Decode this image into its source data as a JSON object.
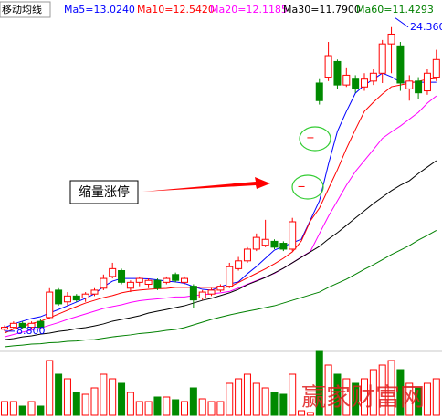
{
  "chart_data": {
    "type": "candlestick",
    "title": "移动均线",
    "open": [
      8.9,
      9.0,
      9.2,
      9.0,
      9.3,
      9.5,
      10.9,
      10.3,
      10.6,
      10.5,
      10.7,
      11.0,
      11.6,
      11.9,
      11.0,
      11.3,
      11.2,
      11.4,
      11.3,
      11.7,
      11.3,
      11.1,
      10.5,
      10.7,
      10.9,
      11.1,
      12.0,
      12.4,
      13.0,
      13.2,
      13.4,
      13.3,
      13.0,
      16.2,
      18.7,
      21.5,
      21.8,
      22.6,
      21.4,
      21.7,
      21.3,
      21.6,
      22.0,
      23.5,
      23.4,
      21.2,
      21.6,
      21.1,
      21.8
    ],
    "high": [
      9.1,
      9.3,
      9.3,
      9.3,
      9.4,
      11.0,
      11.0,
      10.8,
      10.7,
      10.8,
      11.0,
      11.7,
      12.3,
      12.0,
      11.4,
      11.6,
      11.5,
      11.5,
      11.6,
      11.8,
      11.6,
      11.2,
      10.9,
      11.0,
      11.2,
      12.3,
      12.6,
      13.1,
      13.8,
      14.5,
      13.5,
      13.4,
      14.6,
      16.2,
      18.7,
      21.7,
      23.6,
      22.7,
      22.3,
      21.9,
      22.0,
      22.2,
      23.7,
      24.36,
      23.6,
      21.9,
      21.8,
      22.2,
      23.2
    ],
    "low": [
      8.8,
      8.9,
      8.9,
      8.9,
      8.9,
      9.4,
      10.1,
      10.1,
      10.3,
      10.3,
      10.6,
      10.9,
      11.5,
      11.2,
      10.8,
      11.1,
      11.0,
      10.9,
      11.2,
      11.3,
      11.2,
      10.0,
      10.4,
      10.6,
      10.8,
      11.0,
      11.9,
      12.3,
      12.9,
      13.1,
      13.0,
      12.9,
      12.9,
      16.2,
      18.7,
      20.4,
      21.6,
      21.2,
      21.3,
      21.0,
      21.1,
      21.4,
      21.5,
      22.0,
      21.1,
      20.6,
      20.7,
      20.9,
      21.6
    ],
    "close": [
      9.0,
      9.2,
      9.0,
      9.2,
      9.0,
      10.8,
      10.2,
      10.6,
      10.4,
      10.7,
      10.9,
      11.5,
      12.0,
      11.3,
      11.3,
      11.5,
      11.4,
      11.0,
      11.5,
      11.4,
      11.5,
      10.4,
      10.8,
      10.9,
      11.1,
      12.1,
      12.4,
      13.0,
      13.6,
      13.5,
      13.1,
      13.0,
      14.4,
      16.2,
      18.7,
      20.6,
      22.9,
      21.4,
      21.9,
      21.2,
      21.7,
      22.0,
      23.5,
      24.0,
      21.5,
      21.6,
      21.0,
      22.0,
      22.7
    ],
    "up_color": "#ff0000",
    "down_color": "#008a00",
    "ylim": [
      8,
      25.75
    ],
    "series": [
      {
        "name": "Ma5=13.0240",
        "color": "#0000ff",
        "values": [
          8.98,
          9.17,
          9.31,
          9.45,
          9.54,
          9.73,
          9.91,
          10.1,
          10.29,
          10.48,
          10.71,
          11.08,
          11.36,
          11.5,
          11.5,
          11.5,
          11.48,
          11.43,
          11.36,
          11.32,
          11.25,
          11.08,
          10.94,
          10.9,
          11.08,
          11.22,
          11.32,
          11.74,
          12.11,
          12.53,
          12.95,
          13.14,
          13.32,
          13.51,
          14.49,
          15.47,
          17.34,
          19.02,
          20.05,
          20.98,
          21.4,
          21.69,
          22.01,
          21.82,
          21.54,
          21.54,
          21.54,
          21.54,
          21.54
        ]
      },
      {
        "name": "Ma10=12.5420",
        "color": "#ff0000",
        "values": [
          8.7,
          8.91,
          9.05,
          9.19,
          9.31,
          9.49,
          9.68,
          9.87,
          10.06,
          10.24,
          10.38,
          10.52,
          10.62,
          10.76,
          10.85,
          10.9,
          10.94,
          10.97,
          10.99,
          11.04,
          11.04,
          11.04,
          11.04,
          11.04,
          11.04,
          11.06,
          11.29,
          11.53,
          11.76,
          11.99,
          12.25,
          12.53,
          12.86,
          13.42,
          14.45,
          15.1,
          16.08,
          17.06,
          18.14,
          19.12,
          20.05,
          20.52,
          20.94,
          21.31,
          21.4,
          21.5,
          21.59,
          21.69,
          21.73
        ]
      },
      {
        "name": "Ma20=12.1185",
        "color": "#ff00ff",
        "values": [
          8.51,
          8.63,
          8.75,
          8.86,
          8.96,
          9.1,
          9.24,
          9.4,
          9.54,
          9.68,
          9.82,
          9.96,
          10.06,
          10.15,
          10.27,
          10.36,
          10.41,
          10.45,
          10.5,
          10.55,
          10.55,
          10.62,
          10.66,
          10.71,
          10.76,
          10.83,
          11.01,
          11.2,
          11.39,
          11.57,
          11.76,
          12.02,
          12.3,
          12.6,
          12.88,
          13.79,
          14.68,
          15.47,
          16.27,
          16.97,
          17.53,
          18.09,
          18.67,
          19.0,
          19.3,
          19.65,
          20.0,
          20.47,
          20.84
        ]
      },
      {
        "name": "Ma30=11.7900",
        "color": "#000000",
        "values": [
          8.37,
          8.42,
          8.51,
          8.56,
          8.65,
          8.7,
          8.79,
          8.84,
          8.93,
          8.98,
          9.07,
          9.17,
          9.31,
          9.4,
          9.49,
          9.59,
          9.73,
          9.82,
          9.91,
          10.01,
          10.1,
          10.24,
          10.38,
          10.48,
          10.62,
          10.76,
          10.94,
          11.18,
          11.36,
          11.55,
          11.78,
          12.02,
          12.3,
          12.58,
          12.86,
          13.14,
          13.51,
          13.84,
          14.21,
          14.59,
          14.96,
          15.33,
          15.66,
          15.99,
          16.27,
          16.5,
          16.87,
          17.2,
          17.53
        ]
      },
      {
        "name": "Ma60=11.4293",
        "color": "#008000",
        "values": [
          8.0,
          8.05,
          8.09,
          8.14,
          8.16,
          8.21,
          8.23,
          8.28,
          8.3,
          8.35,
          8.37,
          8.44,
          8.51,
          8.56,
          8.61,
          8.68,
          8.72,
          8.77,
          8.84,
          8.89,
          8.98,
          9.12,
          9.26,
          9.4,
          9.52,
          9.63,
          9.73,
          9.82,
          9.91,
          10.01,
          10.1,
          10.24,
          10.38,
          10.52,
          10.66,
          10.8,
          11.04,
          11.25,
          11.46,
          11.71,
          11.97,
          12.2,
          12.46,
          12.72,
          12.95,
          13.18,
          13.46,
          13.7,
          13.96
        ]
      }
    ],
    "volume": {
      "values": [
        15,
        15,
        10,
        15,
        10,
        60,
        45,
        40,
        25,
        23,
        30,
        45,
        40,
        35,
        25,
        15,
        15,
        20,
        20,
        17,
        15,
        30,
        18,
        15,
        15,
        35,
        40,
        45,
        35,
        30,
        25,
        23,
        45,
        5,
        3,
        70,
        55,
        45,
        40,
        35,
        40,
        50,
        55,
        60,
        50,
        35,
        30,
        35,
        40
      ],
      "ylim": [
        0,
        75
      ]
    },
    "price_labels": [
      {
        "value": 24.36,
        "label": "24.360",
        "color": "#0000ff"
      },
      {
        "value": 8.8,
        "label": "8.800",
        "color": "#0000ff"
      }
    ],
    "annotation": "缩量涨停",
    "watermark": "赢家财富网"
  }
}
